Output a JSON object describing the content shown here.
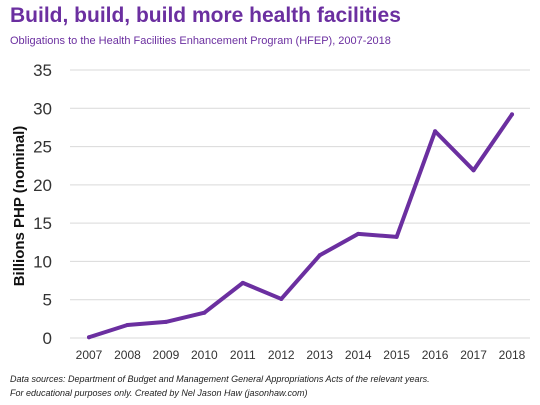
{
  "header": {
    "title": "Build, build, build more health facilities",
    "subtitle": "Obligations to the Health Facilities Enhancement Program (HFEP), 2007-2018"
  },
  "footer": {
    "sources": "Data sources: Department of Budget and Management General Appropriations Acts of the relevant years.",
    "credit": "For educational purposes only. Created by Nel Jason Haw (jasonhaw.com)"
  },
  "colors": {
    "accent": "#6b2fa0",
    "grid": "#d9d9d9"
  },
  "chart_data": {
    "type": "line",
    "title": "Build, build, build more health facilities",
    "ylabel": "Billions PHP (nominal)",
    "xlabel": "",
    "ylim": [
      0,
      35
    ],
    "yticks": [
      0,
      5,
      10,
      15,
      20,
      25,
      30,
      35
    ],
    "grid": true,
    "categories": [
      "2007",
      "2008",
      "2009",
      "2010",
      "2011",
      "2012",
      "2013",
      "2014",
      "2015",
      "2016",
      "2017",
      "2018"
    ],
    "series": [
      {
        "values": [
          0.1,
          1.7,
          2.1,
          3.3,
          7.2,
          5.1,
          10.8,
          13.6,
          13.2,
          27.0,
          21.9,
          29.2
        ]
      }
    ]
  }
}
